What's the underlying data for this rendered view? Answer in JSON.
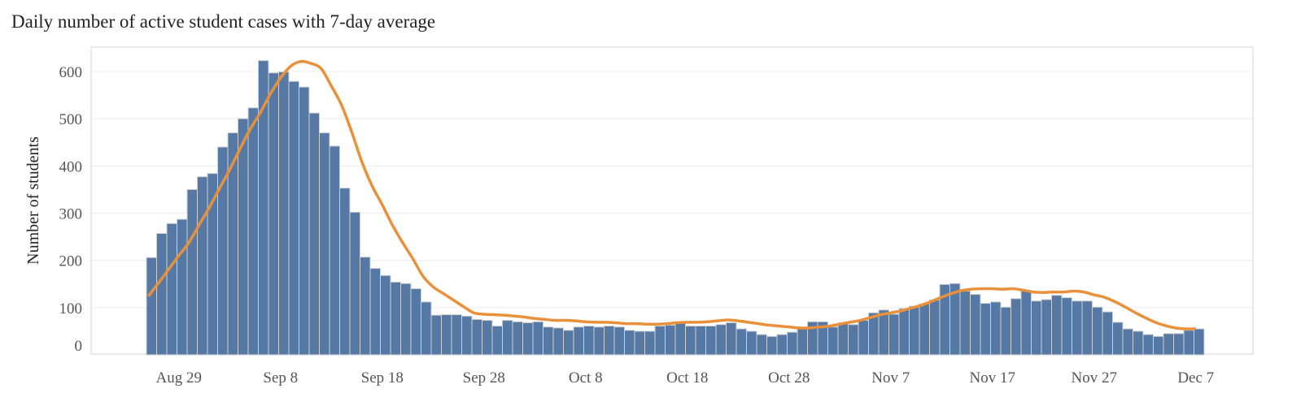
{
  "chart_data": {
    "type": "bar",
    "title": "Daily number of active student cases with 7-day average",
    "xlabel": "",
    "ylabel": "Number of students",
    "ylim": [
      0,
      650
    ],
    "yticks": [
      0,
      100,
      200,
      300,
      400,
      500,
      600
    ],
    "grid": true,
    "x_start": "Aug 26",
    "x_end": "Dec 7",
    "xtick_labels": [
      {
        "label": "Aug 29",
        "day_index": 3
      },
      {
        "label": "Sep 8",
        "day_index": 13
      },
      {
        "label": "Sep 18",
        "day_index": 23
      },
      {
        "label": "Sep 28",
        "day_index": 33
      },
      {
        "label": "Oct 8",
        "day_index": 43
      },
      {
        "label": "Oct 18",
        "day_index": 53
      },
      {
        "label": "Oct 28",
        "day_index": 63
      },
      {
        "label": "Nov 7",
        "day_index": 73
      },
      {
        "label": "Nov 17",
        "day_index": 83
      },
      {
        "label": "Nov 27",
        "day_index": 93
      },
      {
        "label": "Dec 7",
        "day_index": 103
      }
    ],
    "colors": {
      "bars": "#5578a5",
      "bar_edge": "#d0d0d0",
      "average_line": "#e8913a",
      "grid": "#ececec"
    },
    "series": [
      {
        "type": "bar",
        "values": [
          206,
          257,
          278,
          287,
          350,
          377,
          384,
          440,
          470,
          500,
          523,
          623,
          597,
          599,
          579,
          567,
          512,
          470,
          442,
          353,
          302,
          207,
          183,
          168,
          154,
          151,
          140,
          112,
          84,
          85,
          85,
          82,
          75,
          73,
          61,
          73,
          70,
          68,
          70,
          59,
          57,
          52,
          59,
          61,
          59,
          61,
          59,
          52,
          50,
          50,
          61,
          63,
          70,
          61,
          61,
          61,
          64,
          68,
          55,
          50,
          43,
          39,
          43,
          48,
          55,
          70,
          70,
          59,
          68,
          64,
          73,
          89,
          95,
          86,
          98,
          103,
          108,
          116,
          149,
          151,
          135,
          128,
          109,
          112,
          101,
          119,
          137,
          114,
          117,
          126,
          121,
          114,
          114,
          101,
          91,
          69,
          55,
          50,
          43,
          39,
          45,
          45,
          52,
          55
        ]
      },
      {
        "type": "line",
        "values": [
          124,
          152,
          181,
          210,
          238,
          275,
          312,
          352,
          392,
          435,
          477,
          512,
          552,
          586,
          611,
          621,
          617,
          606,
          569,
          529,
          472,
          409,
          358,
          318,
          275,
          238,
          204,
          167,
          144,
          130,
          116,
          102,
          89,
          86,
          85,
          84,
          82,
          80,
          77,
          75,
          73,
          73,
          72,
          70,
          69,
          69,
          68,
          66,
          66,
          65,
          65,
          66,
          68,
          69,
          69,
          70,
          72,
          74,
          72,
          69,
          66,
          63,
          61,
          59,
          57,
          57,
          59,
          61,
          65,
          69,
          73,
          79,
          85,
          89,
          93,
          99,
          105,
          113,
          122,
          130,
          136,
          139,
          140,
          140,
          139,
          140,
          137,
          133,
          132,
          133,
          133,
          135,
          133,
          127,
          122,
          113,
          102,
          90,
          79,
          69,
          62,
          57,
          55,
          55
        ]
      }
    ]
  }
}
